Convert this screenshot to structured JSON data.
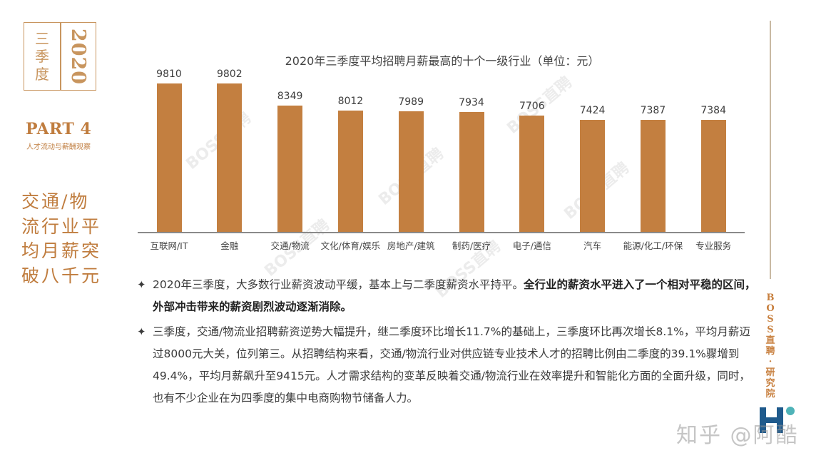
{
  "sidebar": {
    "season": [
      "三",
      "季",
      "度"
    ],
    "year": "2020",
    "part_title": "PART 4",
    "part_subtitle": "人才流动与薪酬观察",
    "headline_lines": [
      "交通/物",
      "流行业平",
      "均月薪突",
      "破八千元"
    ]
  },
  "chart_data": {
    "type": "bar",
    "title": "2020年三季度平均招聘月薪最高的十个一级行业（单位：元）",
    "categories": [
      "互联网/IT",
      "金融",
      "交通/物流",
      "文化/体育/娱乐",
      "房地产/建筑",
      "制药/医疗",
      "电子/通信",
      "汽车",
      "能源/化工/环保",
      "专业服务"
    ],
    "values": [
      9810,
      9802,
      8349,
      8012,
      7989,
      7934,
      7706,
      7424,
      7387,
      7384
    ],
    "value_labels": [
      "9810",
      "9802",
      "8349",
      "8012",
      "7989",
      "7934",
      "7706",
      "7424",
      "7387",
      "7384"
    ],
    "xlabel": "",
    "ylabel": "",
    "ylim": [
      0,
      10000
    ],
    "grid": false,
    "legend": "none",
    "bar_color": "#c37f40",
    "data_labels": true
  },
  "watermark": "BOSS直聘",
  "bullets": [
    {
      "normal": "2020年三季度，大多数行业薪资波动平缓，基本上与二季度薪资水平持平。",
      "bold": "全行业的薪资水平进入了一个相对平稳的区间，外部冲击带来的薪资剧烈波动逐渐消除。"
    },
    {
      "normal": "三季度，交通/物流业招聘薪资逆势大幅提升，继二季度环比增长11.7%的基础上，三季度环比再次增长8.1%，平均月薪迈过8000元大关，位列第三。从招聘结构来看，交通/物流行业对供应链专业技术人才的招聘比例由二季度的39.1%骤增到49.4%，平均月薪飙升至9415元。人才需求结构的变革反映着交通/物流行业在效率提升和智能化方面的全面升级，同时，也有不少企业在为四季度的集中电商购物节储备人力。",
      "bold": ""
    }
  ],
  "right": {
    "vertical_brand": [
      "B",
      "O",
      "S",
      "S",
      "直",
      "聘",
      "·",
      "研",
      "究",
      "院"
    ]
  },
  "footer_watermark": "知乎 @阿酷",
  "colors": {
    "accent": "#c37f40",
    "sidebar_text": "#c07d3f",
    "logo_blue": "#1f5a8c",
    "logo_teal": "#4fb3b8"
  }
}
